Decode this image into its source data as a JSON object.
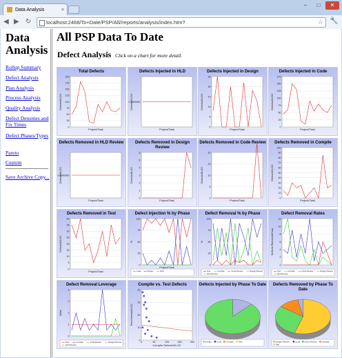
{
  "browser": {
    "tab_title": "Data Analysis",
    "tab_close": "×",
    "url": "localhost:2468/To+Date/PSP/All//reports/analysis/index.htm?",
    "buttons": {
      "minimize": "–",
      "maximize": "□",
      "close": "✕"
    },
    "nav": {
      "back": "◀",
      "forward": "▶",
      "reload": "↻"
    },
    "star": "☆",
    "wrench": "🔧"
  },
  "sidebar": {
    "title": "Data Analysis",
    "links": [
      "Rollup Summary",
      "Defect Analysis",
      "Plan Analysis",
      "Process Analysis",
      "Quality Analysis",
      "Defect Densities and Fix Times",
      "Defect Phases/Types",
      "Pareto",
      "Custom"
    ],
    "save_link": "Save Archive Copy..."
  },
  "main": {
    "heading": "All PSP Data To Date",
    "section": "Defect Analysis",
    "hint": "Click on a chart for more detail."
  },
  "colors": {
    "chart_bg_top": "#b7bff0",
    "chart_bg_bottom": "#eaecfa",
    "red_series": "#e03030",
    "blue_series": "#3333cc",
    "green_series": "#33cc33",
    "link": "#0000cc"
  },
  "chart_data": [
    {
      "title": "Total Defects",
      "type": "line",
      "ylabel": "Defects/KLOC",
      "xlabel": "Project/Task",
      "y_ticks": [
        "200",
        "175",
        "150",
        "125",
        "100",
        "75",
        "50",
        "25",
        "0"
      ],
      "ylim": [
        0,
        200
      ],
      "series": [
        {
          "color": "#e03030",
          "values": [
            50,
            80,
            180,
            140,
            20,
            15,
            90,
            60,
            100,
            65,
            60,
            75
          ]
        }
      ]
    },
    {
      "title": "Defects Injected in HLD",
      "type": "line",
      "ylabel": "Defects/KLOC",
      "xlabel": "Project/Task",
      "y_ticks": [
        "0.0000000"
      ],
      "ylim": [
        -1,
        1
      ],
      "series": [
        {
          "color": "#e03030",
          "values": [
            0,
            0,
            0,
            0,
            0,
            0,
            0,
            0,
            0,
            0,
            0,
            0
          ]
        }
      ]
    },
    {
      "title": "Defects Injected in Design",
      "type": "line",
      "ylabel": "Defects/KLOC",
      "xlabel": "Project/Task",
      "y_ticks": [
        "25",
        "20",
        "15",
        "10",
        "5",
        "0"
      ],
      "ylim": [
        0,
        25
      ],
      "series": [
        {
          "color": "#e03030",
          "values": [
            8,
            25,
            0,
            0,
            20,
            0,
            0,
            22,
            0,
            18,
            13,
            0
          ]
        }
      ]
    },
    {
      "title": "Defects Injected in Code",
      "type": "line",
      "ylabel": "Defects/KLOC",
      "xlabel": "Project/Task",
      "y_ticks": [
        "175",
        "150",
        "125",
        "100",
        "75",
        "50",
        "25",
        "0"
      ],
      "ylim": [
        0,
        175
      ],
      "series": [
        {
          "color": "#e03030",
          "values": [
            45,
            60,
            150,
            130,
            20,
            10,
            90,
            55,
            80,
            60,
            50,
            75
          ]
        }
      ]
    },
    {
      "title": "Defects Removed in HLD Review",
      "type": "line",
      "ylabel": "Defects/KLOC",
      "xlabel": "Project/Task",
      "y_ticks": [
        "0.0000000"
      ],
      "ylim": [
        -1,
        1
      ],
      "series": [
        {
          "color": "#e03030",
          "values": [
            0,
            0,
            0,
            0,
            0,
            0,
            0,
            0,
            0,
            0,
            0,
            0
          ]
        }
      ]
    },
    {
      "title": "Defects Removed in Design Review",
      "type": "line",
      "ylabel": "Defects/KLOC",
      "xlabel": "Project/Task",
      "y_ticks": [
        "6",
        "5",
        "4",
        "3",
        "2",
        "1",
        "0"
      ],
      "ylim": [
        0,
        6
      ],
      "series": [
        {
          "color": "#e03030",
          "values": [
            0,
            0,
            0,
            0,
            0,
            0,
            0,
            0,
            0,
            0,
            6,
            4
          ]
        }
      ]
    },
    {
      "title": "Defects Removed in Code Review",
      "type": "line",
      "ylabel": "Defects/KLOC",
      "xlabel": "Project/Task",
      "y_ticks": [
        "20",
        "15",
        "10",
        "5",
        "0"
      ],
      "ylim": [
        0,
        20
      ],
      "series": [
        {
          "color": "#e03030",
          "values": [
            0,
            0,
            0,
            0,
            0,
            0,
            0,
            0,
            0,
            0,
            24,
            0
          ]
        }
      ]
    },
    {
      "title": "Defects Removed in Compile",
      "type": "line",
      "ylabel": "Defects/KLOC",
      "xlabel": "Project/Task",
      "y_ticks": [
        "100",
        "90",
        "80",
        "70",
        "60",
        "50",
        "40",
        "30",
        "20",
        "10",
        "0"
      ],
      "ylim": [
        0,
        100
      ],
      "series": [
        {
          "color": "#e03030",
          "values": [
            15,
            5,
            30,
            20,
            25,
            0,
            10,
            20,
            0,
            85,
            20,
            25
          ]
        }
      ]
    },
    {
      "title": "Defects Removed in Test",
      "type": "line",
      "ylabel": "Defects/KLOC",
      "xlabel": "Project/Task",
      "y_ticks": [
        "40",
        "35",
        "30",
        "25",
        "20",
        "15",
        "10",
        "5",
        "0"
      ],
      "ylim": [
        0,
        40
      ],
      "series": [
        {
          "color": "#e03030",
          "values": [
            35,
            25,
            40,
            15,
            20,
            5,
            15,
            30,
            10,
            35,
            20,
            25
          ]
        }
      ]
    },
    {
      "title": "Defect Injection % by Phase",
      "type": "line",
      "ylabel": "%",
      "xlabel": "Project/Task",
      "y_ticks": [
        "100",
        "75",
        "50",
        "25",
        "0"
      ],
      "ylim": [
        0,
        100
      ],
      "legend": [
        "Code",
        "Design",
        "HLD"
      ],
      "series": [
        {
          "name": "Code",
          "color": "#e03030",
          "values": [
            75,
            100,
            90,
            100,
            85,
            100,
            70,
            100,
            0,
            100,
            60,
            100
          ]
        },
        {
          "name": "Design",
          "color": "#3333cc",
          "values": [
            25,
            0,
            10,
            0,
            15,
            0,
            30,
            0,
            100,
            0,
            40,
            0
          ]
        },
        {
          "name": "HLD",
          "color": "#33cc33",
          "values": [
            0,
            0,
            0,
            0,
            0,
            0,
            0,
            0,
            0,
            0,
            0,
            0
          ]
        }
      ]
    },
    {
      "title": "Defect Removal % by Phase",
      "type": "line",
      "ylabel": "%",
      "xlabel": "",
      "y_ticks": [
        "100",
        "75",
        "50",
        "25",
        "0"
      ],
      "ylim": [
        0,
        100
      ],
      "legend": [
        "Test",
        "Compile",
        "Code Review",
        "Design Review",
        "HLD Review"
      ],
      "series": [
        {
          "name": "Test",
          "color": "#3333cc",
          "values": [
            90,
            10,
            80,
            20,
            100,
            0,
            90,
            60,
            20,
            100,
            60,
            90
          ]
        },
        {
          "name": "Compile",
          "color": "#33cc33",
          "values": [
            10,
            80,
            20,
            70,
            0,
            90,
            5,
            30,
            80,
            0,
            30,
            5
          ]
        },
        {
          "name": "Code Review",
          "color": "#e03030",
          "values": [
            0,
            10,
            0,
            10,
            0,
            10,
            5,
            10,
            0,
            0,
            10,
            5
          ]
        }
      ]
    },
    {
      "title": "Defect Removal Rates",
      "type": "line",
      "ylabel": "Defects Removed/Hour",
      "xlabel": "",
      "y_ticks": [
        "12",
        "10",
        "8",
        "6",
        "4",
        "2",
        "0"
      ],
      "ylim": [
        0,
        12
      ],
      "legend": [
        "Test",
        "Compile",
        "Code Review",
        "Design Review",
        "HLD Review"
      ],
      "series": [
        {
          "name": "Test",
          "color": "#3333cc",
          "values": [
            4,
            3,
            9,
            2,
            8,
            3,
            12,
            1,
            6,
            3,
            4,
            5
          ]
        },
        {
          "name": "Compile",
          "color": "#33cc33",
          "values": [
            8,
            12,
            2,
            1,
            5,
            1,
            0,
            4,
            0,
            2,
            1,
            0
          ]
        },
        {
          "name": "Code Review",
          "color": "#e03030",
          "values": [
            0,
            0,
            0,
            0,
            0,
            0,
            0,
            0,
            0,
            6,
            3,
            0
          ]
        }
      ]
    },
    {
      "title": "Defect Removal Leverage",
      "type": "line",
      "ylabel": "Value",
      "xlabel": "",
      "y_ticks": [
        "4",
        "3",
        "2",
        "1",
        "0"
      ],
      "ylim": [
        0,
        4
      ],
      "legend": [
        "Test",
        "Compile",
        "Code Review",
        "Design Review",
        "HLD Review"
      ],
      "series": [
        {
          "name": "Test",
          "color": "#e03030",
          "values": [
            1,
            1,
            1,
            1,
            1,
            1,
            1,
            1,
            1,
            1,
            1,
            1
          ]
        },
        {
          "name": "Compile",
          "color": "#3333cc",
          "values": [
            0.5,
            2,
            0.5,
            1.5,
            0.5,
            1,
            0.5,
            4,
            0.5,
            1,
            0.5,
            1
          ]
        },
        {
          "name": "Code Review",
          "color": "#33cc33",
          "values": [
            0,
            0,
            0,
            0,
            0,
            0,
            0,
            0,
            0,
            0,
            1.5,
            0
          ]
        }
      ]
    },
    {
      "title": "Compile vs. Test Defects",
      "type": "scatter",
      "ylabel": "Test Defects/KLOC",
      "xlabel": "Compile Defects/KLOC",
      "y_ticks": [
        "40",
        "30",
        "20",
        "10",
        "0"
      ],
      "x_ticks": [
        "0",
        "50",
        "100",
        "150",
        "200"
      ],
      "ylim": [
        0,
        40
      ],
      "xlim": [
        0,
        200
      ],
      "points": [
        [
          5,
          38
        ],
        [
          10,
          35
        ],
        [
          15,
          30
        ],
        [
          20,
          18
        ],
        [
          5,
          10
        ],
        [
          25,
          8
        ],
        [
          30,
          15
        ],
        [
          15,
          5
        ],
        [
          40,
          3
        ],
        [
          20,
          25
        ],
        [
          60,
          2
        ],
        [
          10,
          28
        ]
      ],
      "trend": [
        [
          0,
          12
        ],
        [
          200,
          7
        ]
      ]
    },
    {
      "title": "Defects Injected by Phase To Date",
      "type": "pie",
      "legend": [
        "Design",
        "Code",
        "Compile",
        "Test"
      ],
      "slices": [
        {
          "name": "Design",
          "value": 12,
          "color": "#b3b3e6"
        },
        {
          "name": "Code",
          "value": 88,
          "color": "#66dd66"
        }
      ]
    },
    {
      "title": "Defects Removed by Phase To Date",
      "type": "pie",
      "legend": [
        "Design Review",
        "Code",
        "Code Review",
        "Compile",
        "Test"
      ],
      "slices": [
        {
          "name": "Test",
          "value": 55,
          "color": "#ffcc33"
        },
        {
          "name": "Compile",
          "value": 30,
          "color": "#66dd66"
        },
        {
          "name": "Code Review",
          "value": 12,
          "color": "#ff8c1a"
        },
        {
          "name": "Design Review",
          "value": 3,
          "color": "#b3b3e6"
        }
      ]
    }
  ]
}
